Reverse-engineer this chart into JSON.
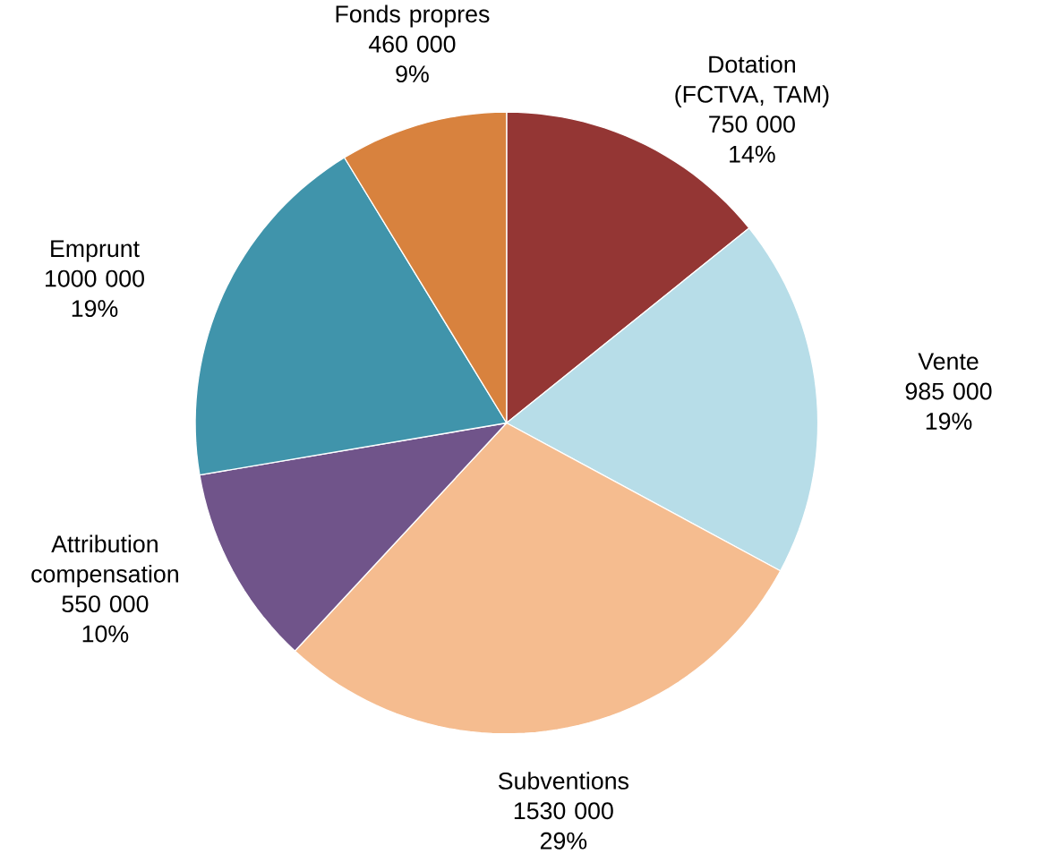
{
  "chart_data": {
    "type": "pie",
    "categories": [
      "Dotation (FCTVA, TAM)",
      "Vente",
      "Subventions",
      "Attribution compensation",
      "Emprunt",
      "Fonds propres"
    ],
    "values": [
      750000,
      985000,
      1530000,
      550000,
      1000000,
      460000
    ],
    "colors": [
      "#943634",
      "#b7dde8",
      "#f5bc8f",
      "#70548a",
      "#4094ab",
      "#d8823e"
    ],
    "value_labels": [
      "750 000",
      "985 000",
      "1530 000",
      "550 000",
      "1000 000",
      "460 000"
    ],
    "annotations": [
      "14%",
      "19%",
      "29%",
      "10%",
      "19%",
      "9%"
    ]
  }
}
